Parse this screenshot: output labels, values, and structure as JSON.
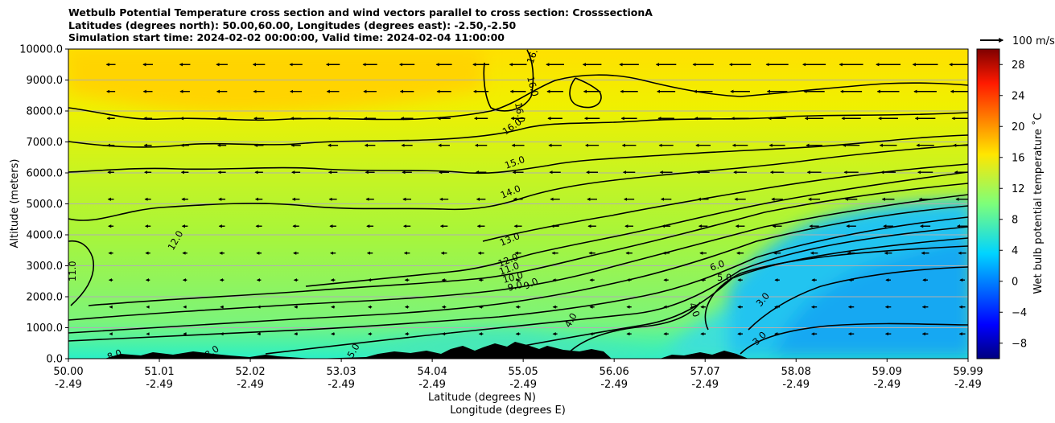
{
  "title": {
    "line1": "Wetbulb Potential Temperature cross section and wind vectors parallel to cross section: CrosssectionA",
    "line2": "Latitudes (degrees north): 50.00,60.00, Longitudes (degrees east): -2.50,-2.50",
    "line3": "Simulation start time: 2024-02-02 00:00:00, Valid time: 2024-02-04 11:00:00"
  },
  "chart_data": {
    "type": "heatmap",
    "ylabel": "Altitude (meters)",
    "xlabel_lat": "Latitude (degrees N)",
    "xlabel_lon": "Longitude (degrees E)",
    "ylim": [
      0,
      10000
    ],
    "xlim": [
      50.0,
      59.99
    ],
    "grid": "horizontal",
    "y_ticks": [
      "0.0",
      "1000.0",
      "2000.0",
      "3000.0",
      "4000.0",
      "5000.0",
      "6000.0",
      "7000.0",
      "8000.0",
      "9000.0",
      "10000.0"
    ],
    "x_ticks": [
      {
        "lat": "50.00",
        "lon": "-2.49",
        "value": 50.0
      },
      {
        "lat": "51.01",
        "lon": "-2.49",
        "value": 51.01
      },
      {
        "lat": "52.02",
        "lon": "-2.49",
        "value": 52.02
      },
      {
        "lat": "53.03",
        "lon": "-2.49",
        "value": 53.03
      },
      {
        "lat": "54.04",
        "lon": "-2.49",
        "value": 54.04
      },
      {
        "lat": "55.05",
        "lon": "-2.49",
        "value": 55.05
      },
      {
        "lat": "56.06",
        "lon": "-2.49",
        "value": 56.06
      },
      {
        "lat": "57.07",
        "lon": "-2.49",
        "value": 57.07
      },
      {
        "lat": "58.08",
        "lon": "-2.49",
        "value": 58.08
      },
      {
        "lat": "59.09",
        "lon": "-2.49",
        "value": 59.09
      },
      {
        "lat": "59.99",
        "lon": "-2.49",
        "value": 59.99
      }
    ],
    "colorbar": {
      "label": "Wet bulb potential temperature ˚C",
      "ticks": [
        "−8",
        "−4",
        "0",
        "4",
        "8",
        "12",
        "16",
        "20",
        "24",
        "28"
      ],
      "tick_values": [
        -8,
        -4,
        0,
        4,
        8,
        12,
        16,
        20,
        24,
        28
      ],
      "range": [
        -10,
        30
      ],
      "colormap": "jet"
    },
    "wind_key": {
      "label": "100 m/s",
      "value": 100
    },
    "contour_levels": [
      3,
      4,
      5,
      6,
      7,
      8,
      9,
      10,
      11,
      12,
      13,
      14,
      15,
      16
    ],
    "contour_labels": [
      {
        "text": "16.0",
        "lat": 55.3,
        "alt": 9600
      },
      {
        "text": "16.0",
        "lat": 55.1,
        "alt": 8900
      },
      {
        "text": "16.0",
        "lat": 55.0,
        "alt": 7800
      },
      {
        "text": "15.0",
        "lat": 55.2,
        "alt": 6200
      },
      {
        "text": "14.0",
        "lat": 55.1,
        "alt": 5300
      },
      {
        "text": "13.0",
        "lat": 55.0,
        "alt": 3900
      },
      {
        "text": "12.0",
        "lat": 51.4,
        "alt": 3900
      },
      {
        "text": "12.0",
        "lat": 54.9,
        "alt": 3200
      },
      {
        "text": "11.0",
        "lat": 50.05,
        "alt": 2800
      },
      {
        "text": "11.0",
        "lat": 54.9,
        "alt": 2800
      },
      {
        "text": "10.0",
        "lat": 54.9,
        "alt": 2500
      },
      {
        "text": "9.0",
        "lat": 54.9,
        "alt": 2200
      },
      {
        "text": "9.0",
        "lat": 55.2,
        "alt": 2400
      },
      {
        "text": "6.0",
        "lat": 57.2,
        "alt": 3000
      },
      {
        "text": "5.0",
        "lat": 57.3,
        "alt": 2700
      },
      {
        "text": "4.0",
        "lat": 55.6,
        "alt": 1300
      },
      {
        "text": "4.0",
        "lat": 56.9,
        "alt": 1600
      },
      {
        "text": "3.0",
        "lat": 57.7,
        "alt": 1900
      },
      {
        "text": "3.0",
        "lat": 57.6,
        "alt": 700
      },
      {
        "text": "8.0",
        "lat": 50.6,
        "alt": 100
      },
      {
        "text": "8.0",
        "lat": 51.6,
        "alt": 200
      },
      {
        "text": "5.0",
        "lat": 53.2,
        "alt": 200
      }
    ],
    "wind_field": {
      "direction": "westward (toward 50N)",
      "arrow_length_ms_upper": 20,
      "arrow_length_ms_lower": 6
    }
  }
}
